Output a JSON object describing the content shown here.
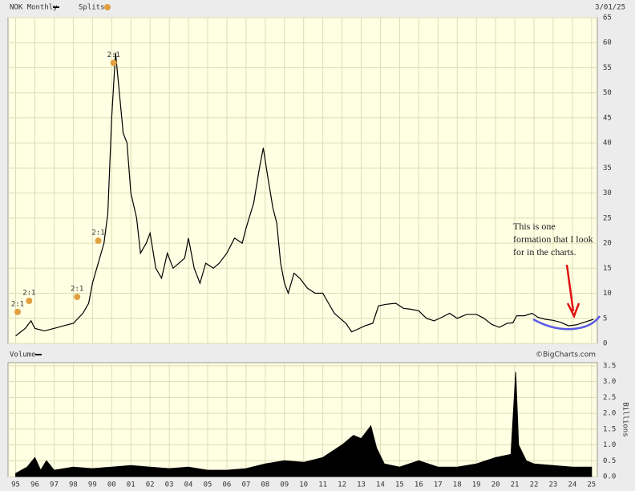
{
  "chart_data": [
    {
      "type": "line",
      "date": "3/01/25",
      "splits_label": "Splits",
      "splits": [
        {
          "x": 1995.1,
          "label": "2:1"
        },
        {
          "x": 1995.7,
          "label": "2:1"
        },
        {
          "x": 1998.2,
          "label": "2:1"
        },
        {
          "x": 1999.3,
          "label": "2:1"
        },
        {
          "x": 2000.1,
          "label": "2:1"
        }
      ],
      "annotation": [
        "This is one",
        "formation that I look",
        "for in the charts."
      ],
      "series": [
        {
          "name": "NOK Monthly",
          "color": "#000000",
          "x": [
            1995.0,
            1995.5,
            1995.8,
            1996.0,
            1996.5,
            1997.0,
            1997.5,
            1998.0,
            1998.5,
            1998.8,
            1999.0,
            1999.3,
            1999.6,
            1999.8,
            2000.0,
            2000.2,
            2000.4,
            2000.6,
            2000.8,
            2001.0,
            2001.3,
            2001.5,
            2001.8,
            2002.0,
            2002.3,
            2002.6,
            2002.9,
            2003.2,
            2003.5,
            2003.8,
            2004.0,
            2004.3,
            2004.6,
            2004.9,
            2005.3,
            2005.6,
            2006.0,
            2006.4,
            2006.8,
            2007.0,
            2007.4,
            2007.7,
            2007.9,
            2008.1,
            2008.4,
            2008.6,
            2008.8,
            2009.0,
            2009.2,
            2009.5,
            2009.8,
            2010.2,
            2010.6,
            2011.0,
            2011.3,
            2011.6,
            2011.9,
            2012.2,
            2012.5,
            2012.8,
            2013.2,
            2013.6,
            2013.9,
            2014.3,
            2014.8,
            2015.2,
            2015.6,
            2016.0,
            2016.4,
            2016.8,
            2017.2,
            2017.6,
            2018.0,
            2018.5,
            2019.0,
            2019.4,
            2019.8,
            2020.2,
            2020.6,
            2020.9,
            2021.1,
            2021.5,
            2021.9,
            2022.2,
            2022.6,
            2023.0,
            2023.4,
            2023.8,
            2024.2,
            2024.6,
            2025.1
          ],
          "values": [
            1.5,
            3,
            4.5,
            3,
            2.5,
            3,
            3.5,
            4,
            6,
            8,
            12,
            16,
            20,
            26,
            45,
            58,
            50,
            42,
            40,
            30,
            25,
            18,
            20,
            22,
            15,
            13,
            18,
            15,
            16,
            17,
            21,
            15,
            12,
            16,
            15,
            16,
            18,
            21,
            20,
            23,
            28,
            35,
            39,
            34,
            27,
            24,
            16,
            12,
            10,
            14,
            13,
            11,
            10,
            10,
            8,
            6,
            5,
            4,
            2.3,
            2.8,
            3.5,
            4,
            7.5,
            7.8,
            8,
            7,
            6.8,
            6.5,
            5,
            4.5,
            5.2,
            6,
            5,
            5.8,
            5.8,
            5,
            3.8,
            3.2,
            4,
            4.1,
            5.5,
            5.5,
            6,
            5.2,
            4.8,
            4.6,
            4.2,
            3.5,
            3.7,
            4.2,
            4.8
          ]
        }
      ],
      "ylim": [
        0,
        65
      ],
      "yticks": [
        0,
        5,
        10,
        15,
        20,
        25,
        30,
        35,
        40,
        45,
        50,
        55,
        60,
        65
      ],
      "grid": true
    },
    {
      "type": "area",
      "source": "©BigCharts.com",
      "y_label": "Billions",
      "series": [
        {
          "name": "Volume",
          "color": "#000000",
          "x": [
            1995.0,
            1995.6,
            1996.0,
            1996.3,
            1996.6,
            1997.0,
            1998.0,
            1999.0,
            2000.0,
            2001.0,
            2002.0,
            2003.0,
            2004.0,
            2005.0,
            2006.0,
            2007.0,
            2008.0,
            2009.0,
            2010.0,
            2011.0,
            2012.0,
            2012.6,
            2013.0,
            2013.5,
            2013.8,
            2014.2,
            2015.0,
            2016.0,
            2017.0,
            2018.0,
            2019.0,
            2020.0,
            2020.8,
            2021.05,
            2021.2,
            2021.6,
            2022.0,
            2023.0,
            2024.0,
            2025.0
          ],
          "values": [
            0.1,
            0.3,
            0.6,
            0.2,
            0.5,
            0.2,
            0.3,
            0.25,
            0.3,
            0.35,
            0.3,
            0.25,
            0.3,
            0.2,
            0.2,
            0.25,
            0.4,
            0.5,
            0.45,
            0.6,
            1.0,
            1.3,
            1.2,
            1.6,
            0.9,
            0.4,
            0.3,
            0.5,
            0.3,
            0.3,
            0.4,
            0.6,
            0.7,
            3.3,
            1.0,
            0.5,
            0.4,
            0.35,
            0.3,
            0.3
          ]
        }
      ],
      "ylim": [
        0,
        3.6
      ],
      "yticks": [
        {
          "value": 0,
          "label": "0.0"
        },
        0.5,
        {
          "value": 1,
          "label": "1.0"
        },
        1.5,
        {
          "value": 2,
          "label": "2.0"
        },
        2.5,
        {
          "value": 3,
          "label": "3.0"
        },
        3.5
      ],
      "xlim": [
        1994.6,
        2025.3
      ],
      "xticks": [
        {
          "value": 1995,
          "label": "95"
        },
        {
          "value": 1996,
          "label": "96"
        },
        {
          "value": 1997,
          "label": "97"
        },
        {
          "value": 1998,
          "label": "98"
        },
        {
          "value": 1999,
          "label": "99"
        },
        {
          "value": 2000,
          "label": "00"
        },
        {
          "value": 2001,
          "label": "01"
        },
        {
          "value": 2002,
          "label": "02"
        },
        {
          "value": 2003,
          "label": "03"
        },
        {
          "value": 2004,
          "label": "04"
        },
        {
          "value": 2005,
          "label": "05"
        },
        {
          "value": 2006,
          "label": "06"
        },
        {
          "value": 2007,
          "label": "07"
        },
        {
          "value": 2008,
          "label": "08"
        },
        {
          "value": 2009,
          "label": "09"
        },
        {
          "value": 2010,
          "label": "10"
        },
        {
          "value": 2011,
          "label": "11"
        },
        {
          "value": 2012,
          "label": "12"
        },
        {
          "value": 2013,
          "label": "13"
        },
        {
          "value": 2014,
          "label": "14"
        },
        {
          "value": 2015,
          "label": "15"
        },
        {
          "value": 2016,
          "label": "16"
        },
        {
          "value": 2017,
          "label": "17"
        },
        {
          "value": 2018,
          "label": "18"
        },
        {
          "value": 2019,
          "label": "19"
        },
        {
          "value": 2020,
          "label": "20"
        },
        {
          "value": 2021,
          "label": "21"
        },
        {
          "value": 2022,
          "label": "22"
        },
        {
          "value": 2023,
          "label": "23"
        },
        {
          "value": 2024,
          "label": "24"
        },
        {
          "value": 2025,
          "label": "25"
        }
      ],
      "grid": true
    }
  ]
}
